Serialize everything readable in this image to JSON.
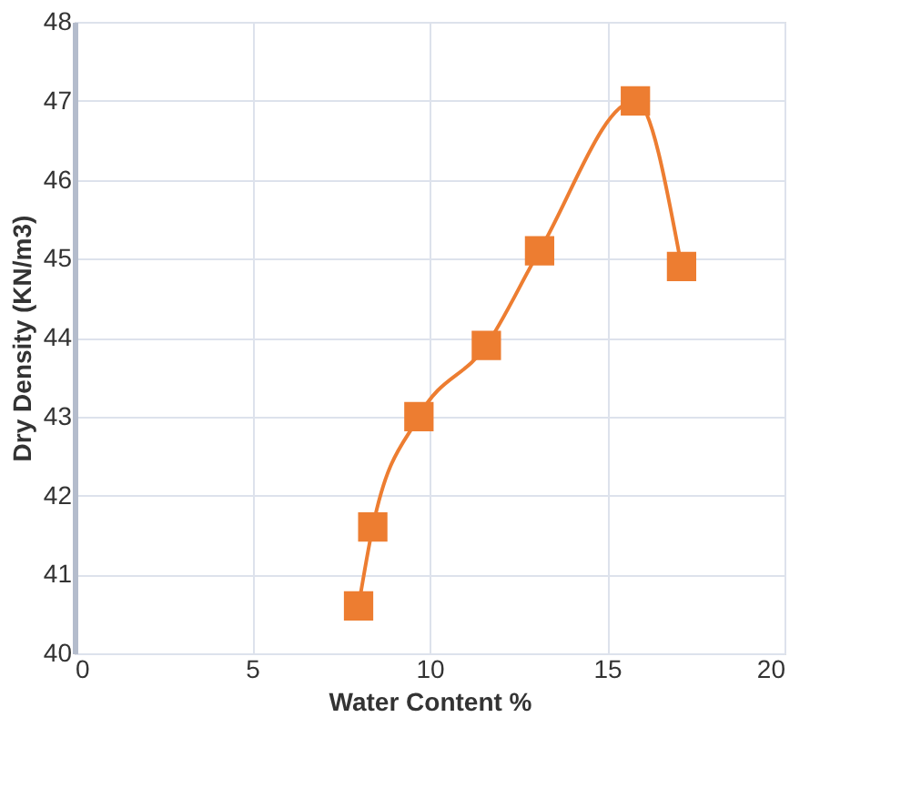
{
  "chart_data": {
    "type": "line",
    "xlabel": "Water Content %",
    "ylabel": "Dry Density (KN/m3)",
    "x": [
      8.0,
      8.4,
      9.7,
      11.6,
      13.1,
      15.8,
      17.1
    ],
    "series": [
      {
        "color": "#ed7d31",
        "values": [
          40.6,
          41.6,
          43.0,
          43.9,
          45.1,
          47.0,
          44.9
        ]
      }
    ],
    "xlim": [
      0,
      20
    ],
    "xticks": [
      0,
      5,
      10,
      15,
      20
    ],
    "ylim": [
      40,
      48
    ],
    "yticks": [
      40,
      41,
      42,
      43,
      44,
      45,
      46,
      47,
      48
    ],
    "grid": true,
    "marker": "square",
    "line_style": "solid"
  }
}
